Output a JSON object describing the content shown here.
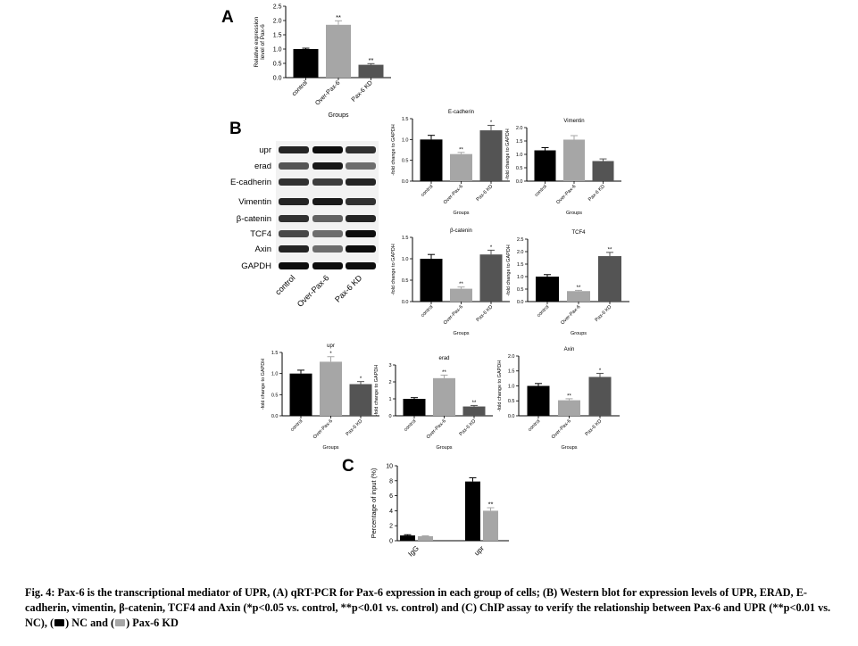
{
  "colors": {
    "nc": "#000000",
    "over": "#a6a6a6",
    "kd": "#545454"
  },
  "panel_labels": [
    "A",
    "B",
    "C"
  ],
  "blot": {
    "bands": [
      "upr",
      "erad",
      "E-cadherin",
      "Vimentin",
      "β-catenin",
      "TCF4",
      "Axin",
      "GAPDH"
    ],
    "lanes": [
      "control",
      "Over-Pax-6",
      "Pax-6 KD"
    ]
  },
  "chart_data": [
    {
      "id": "A",
      "type": "bar",
      "title": "",
      "xlabel": "Groups",
      "ylabel": "Relative expression level of Pax-6",
      "categories": [
        "control",
        "Over-Pax-6",
        "Pax-6 KD"
      ],
      "values": [
        1.0,
        1.85,
        0.45
      ],
      "errors": [
        0.03,
        0.14,
        0.04
      ],
      "annotations": [
        "",
        "**",
        "**"
      ],
      "ylim": [
        0,
        2.5
      ],
      "yticks": [
        "0.0",
        "0.5",
        "1.0",
        "1.5",
        "2.0",
        "2.5"
      ]
    },
    {
      "id": "E-cadherin",
      "type": "bar",
      "title": "E-cadherin",
      "xlabel": "Groups",
      "ylabel": "-fold change to GAPDH",
      "categories": [
        "control",
        "Over-Pax-6",
        "Pax-6 KD"
      ],
      "values": [
        1.0,
        0.65,
        1.22
      ],
      "errors": [
        0.1,
        0.04,
        0.12
      ],
      "annotations": [
        "",
        "**",
        "*"
      ],
      "ylim": [
        0,
        1.5
      ],
      "yticks": [
        "0.0",
        "0.5",
        "1.0",
        "1.5"
      ]
    },
    {
      "id": "Vimentin",
      "type": "bar",
      "title": "Vimentin",
      "xlabel": "Groups",
      "ylabel": "-fold change to GAPDH",
      "categories": [
        "control",
        "Over-Pax-6",
        "Pax-6 KD"
      ],
      "values": [
        1.15,
        1.55,
        0.75
      ],
      "errors": [
        0.1,
        0.15,
        0.08
      ],
      "annotations": [
        "",
        "",
        ""
      ],
      "ylim": [
        0,
        2.0
      ],
      "yticks": [
        "0.0",
        "0.5",
        "1.0",
        "1.5",
        "2.0"
      ]
    },
    {
      "id": "β-catenin",
      "type": "bar",
      "title": "β-catenin",
      "xlabel": "Groups",
      "ylabel": "-fold change to GAPDH",
      "categories": [
        "control",
        "Over-Pax-6",
        "Pax-6 KD"
      ],
      "values": [
        1.0,
        0.3,
        1.1
      ],
      "errors": [
        0.1,
        0.04,
        0.1
      ],
      "annotations": [
        "",
        "**",
        "*"
      ],
      "ylim": [
        0,
        1.5
      ],
      "yticks": [
        "0.0",
        "0.5",
        "1.0",
        "1.5"
      ]
    },
    {
      "id": "TCF4",
      "type": "bar",
      "title": "TCF4",
      "xlabel": "Groups",
      "ylabel": "-fold change to GAPDH",
      "categories": [
        "control",
        "Over-Pax-6",
        "Pax-6 KD"
      ],
      "values": [
        1.0,
        0.42,
        1.82
      ],
      "errors": [
        0.08,
        0.03,
        0.15
      ],
      "annotations": [
        "",
        "**",
        "**"
      ],
      "ylim": [
        0,
        2.5
      ],
      "yticks": [
        "0.0",
        "0.5",
        "1.0",
        "1.5",
        "2.0",
        "2.5"
      ]
    },
    {
      "id": "upr",
      "type": "bar",
      "title": "upr",
      "xlabel": "Groups",
      "ylabel": "-fold change to GAPDH",
      "categories": [
        "control",
        "Over-Pax-6",
        "Pax-6 KD"
      ],
      "values": [
        1.0,
        1.28,
        0.75
      ],
      "errors": [
        0.08,
        0.12,
        0.06
      ],
      "annotations": [
        "",
        "*",
        "*"
      ],
      "ylim": [
        0,
        1.5
      ],
      "yticks": [
        "0.0",
        "0.5",
        "1.0",
        "1.5"
      ]
    },
    {
      "id": "erad",
      "type": "bar",
      "title": "erad",
      "xlabel": "Groups",
      "ylabel": "-fold change to GAPDH",
      "categories": [
        "control",
        "Over-Pax-6",
        "Pax-6 KD"
      ],
      "values": [
        1.0,
        2.22,
        0.55
      ],
      "errors": [
        0.07,
        0.18,
        0.06
      ],
      "annotations": [
        "",
        "**",
        "**"
      ],
      "ylim": [
        0,
        3.0
      ],
      "yticks": [
        "0",
        "1",
        "2",
        "3"
      ]
    },
    {
      "id": "Axin",
      "type": "bar",
      "title": "Axin",
      "xlabel": "Groups",
      "ylabel": "-fold change to GAPDH",
      "categories": [
        "control",
        "Over-Pax-6",
        "Pax-6 KD"
      ],
      "values": [
        1.0,
        0.52,
        1.3
      ],
      "errors": [
        0.08,
        0.05,
        0.12
      ],
      "annotations": [
        "",
        "**",
        "*"
      ],
      "ylim": [
        0,
        2.0
      ],
      "yticks": [
        "0.0",
        "0.5",
        "1.0",
        "1.5",
        "2.0"
      ]
    },
    {
      "id": "C",
      "type": "bar",
      "title": "",
      "xlabel": "",
      "ylabel": "Percentage of input (%)",
      "categories": [
        "IgG",
        "upr"
      ],
      "series": [
        {
          "values": [
            0.7,
            7.9
          ],
          "errors": [
            0.1,
            0.5
          ],
          "annotations": [
            "",
            ""
          ]
        },
        {
          "values": [
            0.6,
            4.0
          ],
          "errors": [
            0.05,
            0.4
          ],
          "annotations": [
            "",
            "**"
          ]
        }
      ],
      "ylim": [
        0,
        10
      ],
      "yticks": [
        "0",
        "2",
        "4",
        "6",
        "8",
        "10"
      ]
    }
  ],
  "caption": {
    "label": "Fig. 4:",
    "text": "Pax-6 is the transcriptional mediator of UPR, (A) qRT-PCR for Pax-6 expression in each group of cells; (B) Western blot for expression levels of UPR, ERAD, E-cadherin, vimentin, β-catenin, TCF4 and Axin (*p<0.05 vs. control, **p<0.01 vs. control) and (C) ChIP assay to verify the relationship between Pax-6 and UPR (**p<0.01 vs. NC), (",
    "legend_nc": ") NC and (",
    "legend_kd": ") Pax-6 KD"
  }
}
